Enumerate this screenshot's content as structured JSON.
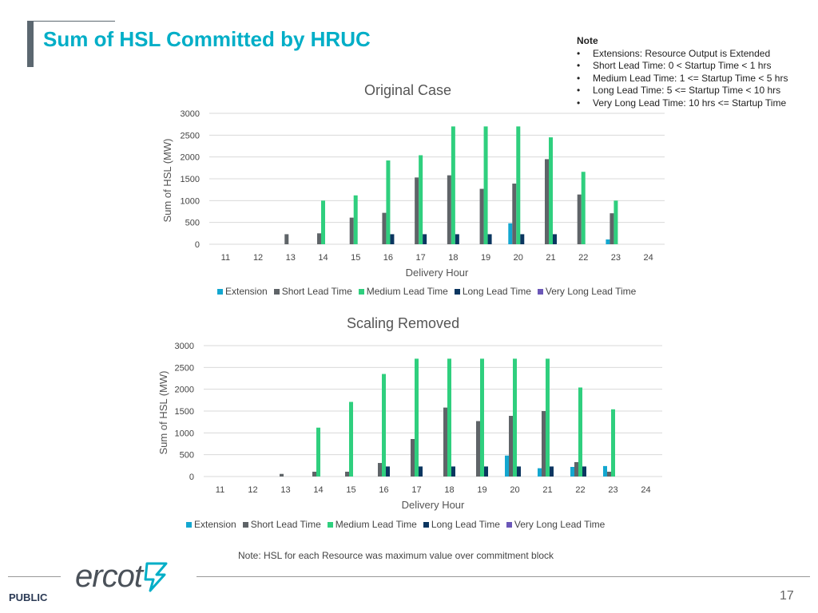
{
  "slide": {
    "title": "Sum of HSL Committed by HRUC",
    "footnote": "Note: HSL for each Resource was maximum value over commitment block",
    "public_label": "PUBLIC",
    "page_number": "17",
    "logo_text": "ercot"
  },
  "note": {
    "heading": "Note",
    "items": [
      "Extensions: Resource Output is Extended",
      "Short Lead Time: 0 < Startup Time < 1 hrs",
      "Medium Lead Time: 1 <= Startup Time < 5 hrs",
      "Long Lead Time: 5 <= Startup Time < 10 hrs",
      "Very Long Lead Time: 10 hrs <= Startup Time"
    ]
  },
  "colors": {
    "title": "#00aec7",
    "extension": "#13a7d0",
    "short": "#5f6468",
    "medium": "#2fcf7e",
    "long": "#0b3660",
    "verylong": "#6b57b8",
    "grid": "#d9d9d9"
  },
  "chart_data": [
    {
      "type": "bar",
      "title": "Original Case",
      "xlabel": "Delivery Hour",
      "ylabel": "Sum of HSL (MW)",
      "ylim": [
        0,
        3000
      ],
      "yticks": [
        "0",
        "500",
        "1000",
        "1500",
        "2000",
        "2500",
        "3000"
      ],
      "categories": [
        "11",
        "12",
        "13",
        "14",
        "15",
        "16",
        "17",
        "18",
        "19",
        "20",
        "21",
        "22",
        "23",
        "24"
      ],
      "legend_position": "bottom",
      "series": [
        {
          "name": "Extension",
          "key": "extension",
          "values": [
            0,
            0,
            0,
            0,
            0,
            0,
            0,
            0,
            0,
            480,
            0,
            0,
            110,
            0
          ]
        },
        {
          "name": "Short Lead Time",
          "key": "short",
          "values": [
            0,
            0,
            230,
            250,
            610,
            720,
            1530,
            1580,
            1270,
            1390,
            1950,
            1140,
            710,
            0
          ]
        },
        {
          "name": "Medium Lead Time",
          "key": "medium",
          "values": [
            0,
            0,
            0,
            1000,
            1120,
            1920,
            2040,
            2700,
            2700,
            2700,
            2450,
            1660,
            1000,
            0
          ]
        },
        {
          "name": "Long Lead Time",
          "key": "long",
          "values": [
            0,
            0,
            0,
            0,
            0,
            230,
            230,
            230,
            230,
            230,
            230,
            0,
            0,
            0
          ]
        },
        {
          "name": "Very Long Lead Time",
          "key": "verylong",
          "values": [
            0,
            0,
            0,
            0,
            0,
            0,
            0,
            0,
            0,
            0,
            0,
            0,
            0,
            0
          ]
        }
      ]
    },
    {
      "type": "bar",
      "title": "Scaling Removed",
      "xlabel": "Delivery Hour",
      "ylabel": "Sum of HSL (MW)",
      "ylim": [
        0,
        3000
      ],
      "yticks": [
        "0",
        "500",
        "1000",
        "1500",
        "2000",
        "2500",
        "3000"
      ],
      "categories": [
        "11",
        "12",
        "13",
        "14",
        "15",
        "16",
        "17",
        "18",
        "19",
        "20",
        "21",
        "22",
        "23",
        "24"
      ],
      "legend_position": "bottom",
      "series": [
        {
          "name": "Extension",
          "key": "extension",
          "values": [
            0,
            0,
            0,
            0,
            0,
            0,
            0,
            0,
            0,
            480,
            190,
            220,
            240,
            0
          ]
        },
        {
          "name": "Short Lead Time",
          "key": "short",
          "values": [
            0,
            0,
            60,
            110,
            110,
            310,
            860,
            1580,
            1270,
            1390,
            1500,
            330,
            110,
            0
          ]
        },
        {
          "name": "Medium Lead Time",
          "key": "medium",
          "values": [
            0,
            0,
            0,
            1120,
            1710,
            2350,
            2700,
            2700,
            2700,
            2700,
            2700,
            2040,
            1540,
            0
          ]
        },
        {
          "name": "Long Lead Time",
          "key": "long",
          "values": [
            0,
            0,
            0,
            0,
            0,
            230,
            230,
            230,
            230,
            230,
            230,
            230,
            0,
            0
          ]
        },
        {
          "name": "Very Long Lead Time",
          "key": "verylong",
          "values": [
            0,
            0,
            0,
            0,
            0,
            0,
            0,
            0,
            0,
            0,
            0,
            0,
            0,
            0
          ]
        }
      ]
    }
  ]
}
